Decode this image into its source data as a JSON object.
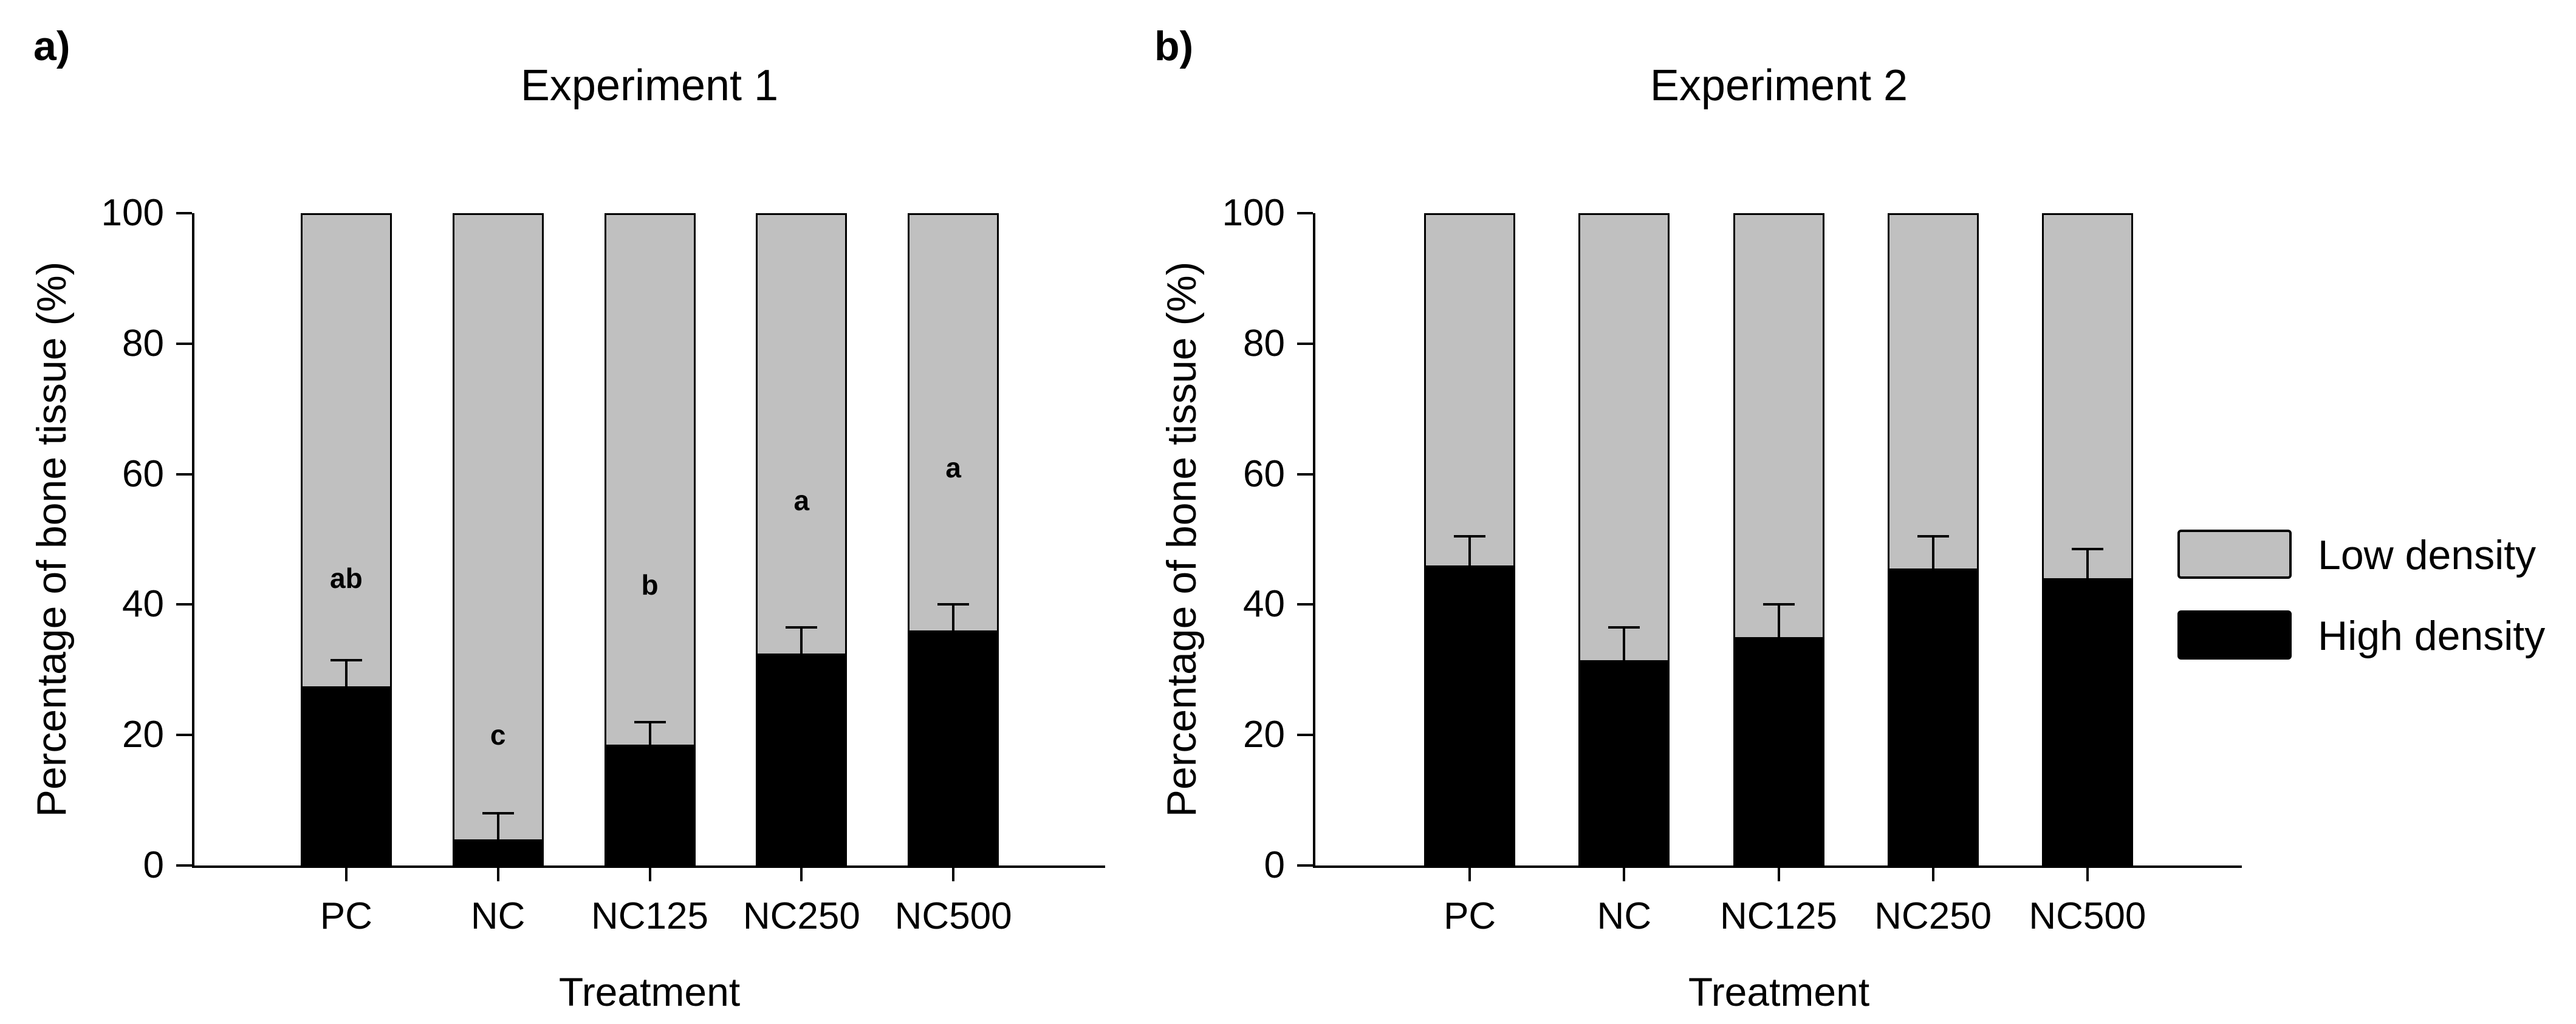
{
  "figure": {
    "panel_a_label": "a)",
    "panel_b_label": "b)",
    "background": "#ffffff",
    "colors": {
      "low_density_fill": "#c0c0c0",
      "high_density_fill": "#000000",
      "bar_border": "#000000",
      "axis": "#000000",
      "text": "#000000"
    }
  },
  "legend": {
    "position": "right-middle",
    "items": [
      {
        "label": "Low density",
        "color": "#c0c0c0",
        "swatch": "gray-box-icon"
      },
      {
        "label": "High density",
        "color": "#000000",
        "swatch": "black-box-icon"
      }
    ]
  },
  "chart_data": [
    {
      "type": "bar",
      "stacked": true,
      "title": "Experiment 1",
      "xlabel": "Treatment",
      "ylabel": "Percentage of bone tissue (%)",
      "ylim": [
        0,
        100
      ],
      "yticks": [
        0,
        20,
        40,
        60,
        80,
        100
      ],
      "grid": false,
      "categories": [
        "PC",
        "NC",
        "NC125",
        "NC250",
        "NC500"
      ],
      "series": [
        {
          "name": "High density",
          "color": "#000000",
          "values": [
            27.5,
            4,
            18.5,
            32.5,
            36
          ],
          "error_plus": [
            4,
            4,
            3.5,
            4,
            4
          ]
        },
        {
          "name": "Low density",
          "color": "#c0c0c0",
          "values": [
            72.5,
            96,
            81.5,
            67.5,
            64
          ]
        }
      ],
      "significance_letters": [
        {
          "category": "PC",
          "label": "ab",
          "y": 44
        },
        {
          "category": "NC",
          "label": "c",
          "y": 20
        },
        {
          "category": "NC125",
          "label": "b",
          "y": 43
        },
        {
          "category": "NC250",
          "label": "a",
          "y": 56
        },
        {
          "category": "NC500",
          "label": "a",
          "y": 61
        }
      ]
    },
    {
      "type": "bar",
      "stacked": true,
      "title": "Experiment 2",
      "xlabel": "Treatment",
      "ylabel": "Percentage of bone tissue (%)",
      "ylim": [
        0,
        100
      ],
      "yticks": [
        0,
        20,
        40,
        60,
        80,
        100
      ],
      "grid": false,
      "categories": [
        "PC",
        "NC",
        "NC125",
        "NC250",
        "NC500"
      ],
      "series": [
        {
          "name": "High density",
          "color": "#000000",
          "values": [
            46,
            31.5,
            35,
            45.5,
            44
          ],
          "error_plus": [
            4.5,
            5,
            5,
            5,
            4.5
          ]
        },
        {
          "name": "Low density",
          "color": "#c0c0c0",
          "values": [
            54,
            68.5,
            65,
            54.5,
            56
          ]
        }
      ],
      "significance_letters": []
    }
  ]
}
